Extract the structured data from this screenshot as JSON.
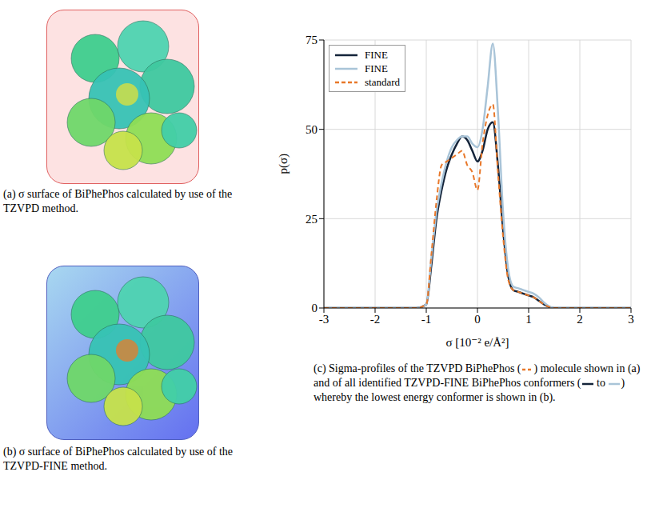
{
  "panels": [
    {
      "caption": "(a) σ surface of BiPhePhos calculated by use of the TZVPD method."
    },
    {
      "caption": "(b) σ surface of BiPhePhos calculated by use of the TZVPD-FINE method."
    }
  ],
  "caption_c_parts": [
    "(c) Sigma-profiles of the TZVPD BiPhePhos (",
    ") molecule shown in (a) and of all identified TZVPD-FINE BiPhePhos conformers (",
    " to ",
    ") whereby the lowest energy conformer is shown in (b)."
  ],
  "chart_data": {
    "type": "line",
    "x_label": "σ [10⁻² e/Å²]",
    "y_label": "p(σ)",
    "x": [
      -3,
      -1.2,
      -1.0,
      -0.9,
      -0.8,
      -0.7,
      -0.6,
      -0.5,
      -0.4,
      -0.3,
      -0.2,
      -0.1,
      0,
      0.1,
      0.2,
      0.3,
      0.4,
      0.5,
      0.6,
      0.7,
      0.8,
      0.9,
      1.0,
      1.1,
      1.2,
      1.3,
      1.4,
      1.5,
      3
    ],
    "series": [
      {
        "name": "FINE",
        "color": "#14243a",
        "line_style": "solid",
        "values": [
          0,
          0,
          1,
          12,
          25,
          33,
          39,
          43,
          46,
          48,
          47,
          44,
          41,
          44,
          50,
          52,
          40,
          22,
          9,
          5,
          4.5,
          4,
          3.5,
          3,
          2,
          1,
          0.3,
          0,
          0
        ]
      },
      {
        "name": "FINE",
        "color": "#a9c4d8",
        "line_style": "solid",
        "values": [
          0,
          0,
          1,
          14,
          27,
          35,
          41,
          45,
          47,
          48,
          48,
          46,
          45,
          50,
          62,
          74,
          55,
          27,
          11,
          6,
          5.5,
          5,
          4.5,
          4,
          3,
          1.5,
          0.5,
          0,
          0
        ]
      },
      {
        "name": "standard",
        "color": "#e8782a",
        "line_style": "dashed",
        "values": [
          0,
          0,
          1,
          15,
          30,
          40,
          41,
          42,
          43,
          44,
          40,
          38,
          33,
          46,
          54,
          57,
          38,
          20,
          8,
          5,
          4.5,
          4,
          3.5,
          3,
          2,
          1,
          0.3,
          0,
          0
        ]
      }
    ],
    "xlim": [
      -3,
      3
    ],
    "xticks": [
      -3,
      -2,
      -1,
      0,
      1,
      2,
      3
    ],
    "ylim": [
      0,
      75
    ],
    "yticks": [
      0,
      25,
      50,
      75
    ],
    "grid": true,
    "legend": "upper left"
  }
}
